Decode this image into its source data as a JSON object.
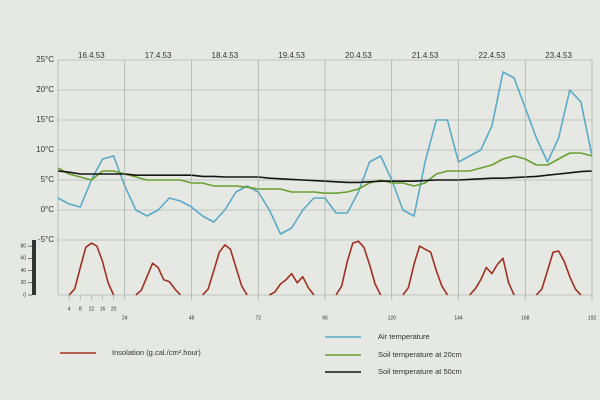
{
  "chart_data": [
    {
      "type": "line",
      "xlim": [
        0,
        192
      ],
      "xticks": [
        {
          "value": 12,
          "label": "16.4.53"
        },
        {
          "value": 36,
          "label": "17.4.53"
        },
        {
          "value": 60,
          "label": "18.4.53"
        },
        {
          "value": 84,
          "label": "19.4.53"
        },
        {
          "value": 108,
          "label": "20.4.53"
        },
        {
          "value": 132,
          "label": "21.4.53"
        },
        {
          "value": 156,
          "label": "22.4.53"
        },
        {
          "value": 180,
          "label": "23.4.53"
        }
      ],
      "ylim": [
        -5,
        25
      ],
      "yticks": [
        {
          "value": -5,
          "label": "-5°C"
        },
        {
          "value": 0,
          "label": "0°C"
        },
        {
          "value": 5,
          "label": "5°C"
        },
        {
          "value": 10,
          "label": "10°C"
        },
        {
          "value": 15,
          "label": "15°C"
        },
        {
          "value": 20,
          "label": "20°C"
        },
        {
          "value": 25,
          "label": "25°C"
        }
      ],
      "grid": true,
      "x": [
        0,
        4,
        8,
        12,
        16,
        20,
        24,
        28,
        32,
        36,
        40,
        44,
        48,
        52,
        56,
        60,
        64,
        68,
        72,
        76,
        80,
        84,
        88,
        92,
        96,
        100,
        104,
        108,
        112,
        116,
        120,
        124,
        128,
        132,
        136,
        140,
        144,
        148,
        152,
        156,
        160,
        164,
        168,
        172,
        176,
        180,
        184,
        188,
        192
      ],
      "series": [
        {
          "name": "Air temperature",
          "color": "#5aaac8",
          "values": [
            2,
            1,
            0.5,
            5,
            8.5,
            9,
            4,
            0,
            -1,
            0,
            2,
            1.5,
            0.5,
            -1,
            -2,
            0,
            3,
            4,
            3,
            0,
            -4,
            -3,
            0,
            2,
            2,
            -0.5,
            -0.5,
            3,
            8,
            9,
            5,
            0,
            -1,
            8,
            15,
            15,
            8,
            9,
            10,
            14,
            23,
            22,
            17,
            12,
            8,
            12,
            20,
            18,
            9
          ]
        },
        {
          "name": "Soil temperature at 20cm",
          "color": "#6aa030",
          "values": [
            7,
            6,
            5.5,
            5,
            6.5,
            6.5,
            6,
            5.5,
            5,
            5,
            5,
            5,
            4.5,
            4.5,
            4,
            4,
            4,
            3.8,
            3.5,
            3.5,
            3.5,
            3,
            3,
            3,
            2.8,
            2.8,
            3,
            3.5,
            4.5,
            5,
            4.5,
            4.5,
            4,
            4.5,
            6,
            6.5,
            6.5,
            6.5,
            7,
            7.5,
            8.5,
            9,
            8.5,
            7.5,
            7.5,
            8.5,
            9.5,
            9.5,
            9
          ]
        },
        {
          "name": "Soil temperature at 50cm",
          "color": "#151515",
          "values": [
            6.5,
            6.3,
            6,
            6,
            6,
            6,
            6,
            5.8,
            5.8,
            5.8,
            5.8,
            5.8,
            5.8,
            5.6,
            5.6,
            5.5,
            5.5,
            5.5,
            5.5,
            5.3,
            5.2,
            5.1,
            5,
            4.9,
            4.8,
            4.7,
            4.6,
            4.6,
            4.7,
            4.8,
            4.8,
            4.8,
            4.8,
            4.9,
            5,
            5,
            5,
            5.1,
            5.2,
            5.3,
            5.3,
            5.4,
            5.5,
            5.6,
            5.8,
            6,
            6.2,
            6.4,
            6.5
          ]
        }
      ]
    },
    {
      "type": "line",
      "xlim": [
        0,
        192
      ],
      "xticks": [
        4,
        8,
        12,
        16,
        20,
        24,
        48,
        72,
        96,
        120,
        144,
        168,
        192
      ],
      "ylim": [
        0,
        90
      ],
      "yticks": [
        0,
        20,
        40,
        60,
        80
      ],
      "x": [
        0,
        2,
        4,
        6,
        8,
        10,
        12,
        14,
        16,
        18,
        20,
        22,
        24,
        26,
        28,
        30,
        32,
        34,
        36,
        38,
        40,
        42,
        44,
        46,
        48,
        50,
        52,
        54,
        56,
        58,
        60,
        62,
        64,
        66,
        68,
        70,
        72,
        74,
        76,
        78,
        80,
        82,
        84,
        86,
        88,
        90,
        92,
        94,
        96,
        98,
        100,
        102,
        104,
        106,
        108,
        110,
        112,
        114,
        116,
        118,
        120,
        122,
        124,
        126,
        128,
        130,
        132,
        134,
        136,
        138,
        140,
        142,
        144,
        146,
        148,
        150,
        152,
        154,
        156,
        158,
        160,
        162,
        164,
        166,
        168,
        170,
        172,
        174,
        176,
        178,
        180,
        182,
        184,
        186,
        188,
        190,
        192
      ],
      "series": [
        {
          "name": "Insolation (g.cal./cm².hour)",
          "color": "#a03020",
          "values": [
            null,
            null,
            0,
            10,
            45,
            78,
            85,
            80,
            55,
            20,
            0,
            null,
            null,
            null,
            0,
            8,
            30,
            52,
            45,
            25,
            22,
            10,
            0,
            null,
            null,
            null,
            0,
            10,
            40,
            70,
            82,
            75,
            45,
            15,
            0,
            null,
            null,
            null,
            0,
            5,
            18,
            25,
            35,
            20,
            30,
            12,
            0,
            null,
            null,
            null,
            0,
            15,
            55,
            85,
            88,
            78,
            50,
            18,
            0,
            null,
            null,
            null,
            0,
            12,
            50,
            80,
            75,
            70,
            40,
            15,
            0,
            null,
            null,
            null,
            0,
            10,
            25,
            45,
            35,
            50,
            60,
            20,
            0,
            null,
            null,
            null,
            0,
            10,
            40,
            70,
            72,
            55,
            30,
            10,
            0,
            null,
            null
          ]
        }
      ]
    }
  ]
}
